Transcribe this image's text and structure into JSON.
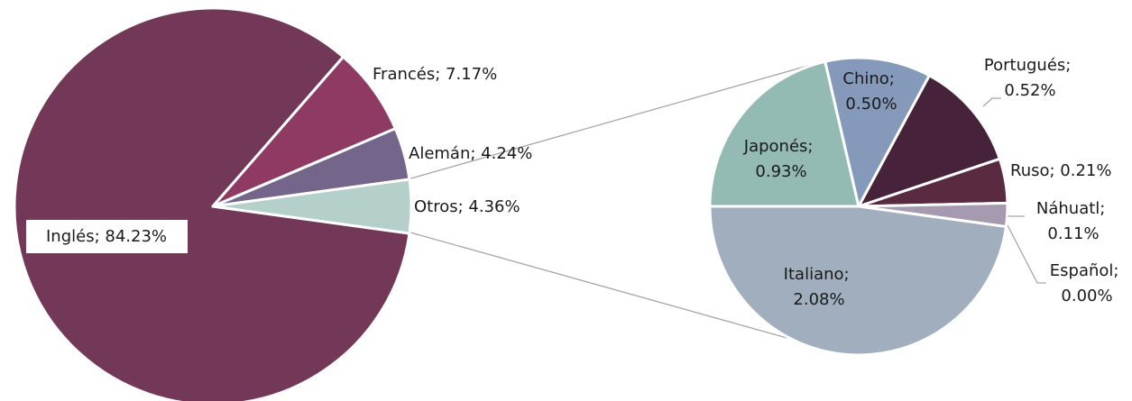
{
  "chart_data": [
    {
      "type": "pie",
      "values": [
        84.23,
        7.17,
        4.24,
        4.36
      ],
      "value_labels": [
        "Inglés; 84.23%",
        "Francés; 7.17%",
        "Alemán; 4.24%",
        "Otros; 4.36%"
      ],
      "colors": [
        "#733757",
        "#8f3a62",
        "#74658a",
        "#b5cfcb"
      ]
    },
    {
      "type": "pie",
      "values": [
        0.93,
        0.5,
        0.52,
        0.21,
        0.11,
        0.0,
        2.08
      ],
      "value_labels": [
        "Japonés; 0.93%",
        "Chino; 0.50%",
        "Portugués; 0.52%",
        "Ruso; 0.21%",
        "Náhuatl; 0.11%",
        "Español; 0.00%",
        "Italiano; 2.08%"
      ],
      "colors": [
        "#93bbb3",
        "#8599bb",
        "#46233a",
        "#5a2a40",
        "#a59aaf",
        "#7e6d8f",
        "#a0aebd"
      ]
    }
  ]
}
